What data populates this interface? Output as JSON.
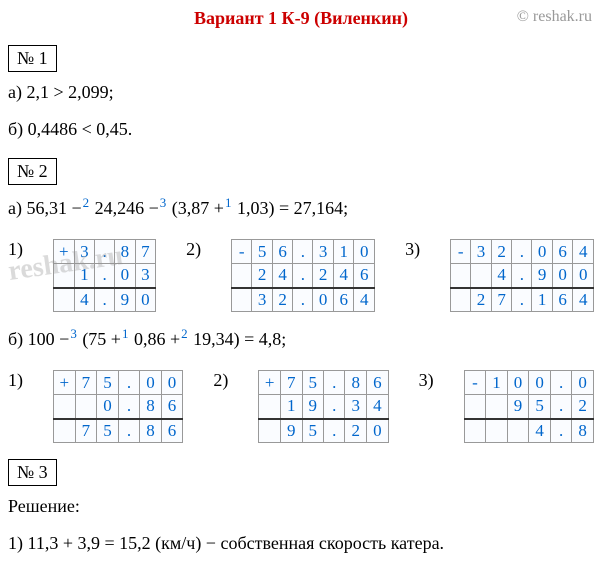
{
  "header": {
    "title": "Вариант 1 К-9 (Виленкин)",
    "copyright": "© reshak.ru"
  },
  "watermark": "reshak.ru",
  "problems": {
    "p1": {
      "num": "№ 1",
      "a": "а) 2,1 > 2,099;",
      "b": "б) 0,4486 < 0,45."
    },
    "p2": {
      "num": "№ 2",
      "a_prefix": "а) 56,31 −",
      "a_sup1": "2",
      "a_mid1": " 24,246 −",
      "a_sup2": "3",
      "a_mid2": " (3,87 +",
      "a_sup3": "1",
      "a_suffix": " 1,03) = 27,164;",
      "b_prefix": "б) 100 −",
      "b_sup1": "3",
      "b_mid1": " (75 +",
      "b_sup2": "1",
      "b_mid2": " 0,86 +",
      "b_sup3": "2",
      "b_suffix": " 19,34) = 4,8;",
      "arith_a": [
        {
          "label": "1)",
          "op": "+",
          "rows": [
            [
              "",
              "3",
              ".",
              "8",
              "7"
            ],
            [
              "",
              "1",
              ".",
              "0",
              "3"
            ],
            [
              "",
              "4",
              ".",
              "9",
              "0"
            ]
          ]
        },
        {
          "label": "2)",
          "op": "-",
          "rows": [
            [
              "",
              "5",
              "6",
              ".",
              "3",
              "1",
              "0"
            ],
            [
              "",
              "2",
              "4",
              ".",
              "2",
              "4",
              "6"
            ],
            [
              "",
              "3",
              "2",
              ".",
              "0",
              "6",
              "4"
            ]
          ]
        },
        {
          "label": "3)",
          "op": "-",
          "rows": [
            [
              "",
              "3",
              "2",
              ".",
              "0",
              "6",
              "4"
            ],
            [
              "",
              "",
              "4",
              ".",
              "9",
              "0",
              "0"
            ],
            [
              "",
              "2",
              "7",
              ".",
              "1",
              "6",
              "4"
            ]
          ]
        }
      ],
      "arith_b": [
        {
          "label": "1)",
          "op": "+",
          "rows": [
            [
              "",
              "7",
              "5",
              ".",
              "0",
              "0"
            ],
            [
              "",
              "",
              "0",
              ".",
              "8",
              "6"
            ],
            [
              "",
              "7",
              "5",
              ".",
              "8",
              "6"
            ]
          ]
        },
        {
          "label": "2)",
          "op": "+",
          "rows": [
            [
              "",
              "7",
              "5",
              ".",
              "8",
              "6"
            ],
            [
              "",
              "1",
              "9",
              ".",
              "3",
              "4"
            ],
            [
              "",
              "9",
              "5",
              ".",
              "2",
              "0"
            ]
          ]
        },
        {
          "label": "3)",
          "op": "-",
          "rows": [
            [
              "",
              "1",
              "0",
              "0",
              ".",
              "0"
            ],
            [
              "",
              "",
              "9",
              "5",
              ".",
              "2"
            ],
            [
              "",
              "",
              "",
              "4",
              ".",
              "8"
            ]
          ]
        }
      ]
    },
    "p3": {
      "num": "№ 3",
      "heading": "Решение:",
      "line1": "1) 11,3 + 3,9 = 15,2 (км/ч) − собственная скорость катера."
    }
  },
  "colors": {
    "title": "#cc0000",
    "copyright": "#999999",
    "sup": "#0066cc",
    "cell_text": "#0066cc",
    "cell_border": "#999999"
  }
}
